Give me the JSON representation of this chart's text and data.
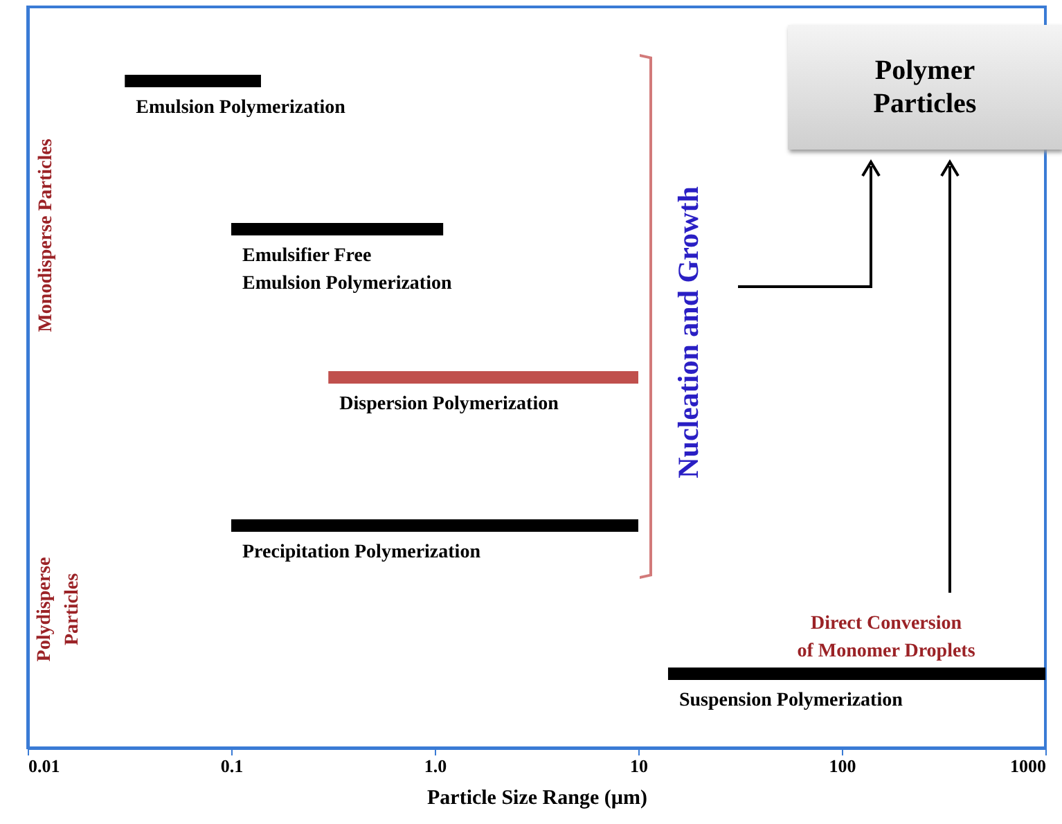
{
  "chart_data": {
    "type": "bar",
    "orientation": "horizontal",
    "log": "x",
    "tick_labels": "x",
    "categories": [
      "Emulsion Polymerization",
      "Emulsifier Free\nEmulsion Polymerization",
      "Dispersion Polymerization",
      "Precipitation Polymerization",
      "Suspension Polymerization"
    ],
    "base": [
      0.03,
      0.1,
      0.3,
      0.1,
      14
    ],
    "values": [
      0.11,
      1.0,
      9.7,
      9.9,
      986
    ],
    "colors": [
      "#000000",
      "#000000",
      "#c0504d",
      "#000000",
      "#000000"
    ],
    "xlim": [
      0.01,
      1000
    ],
    "xticks": [
      0.01,
      0.1,
      {
        "value": 1,
        "label": "1.0"
      },
      10,
      100,
      1000
    ],
    "xlabel": "Particle Size Range (µm)",
    "annotations": [
      "Monodisperse Particles",
      "Polydisperse\nParticles",
      "Nucleation and Growth",
      "Direct Conversion\nof Monomer Droplets",
      "Polymer\nParticles"
    ]
  }
}
